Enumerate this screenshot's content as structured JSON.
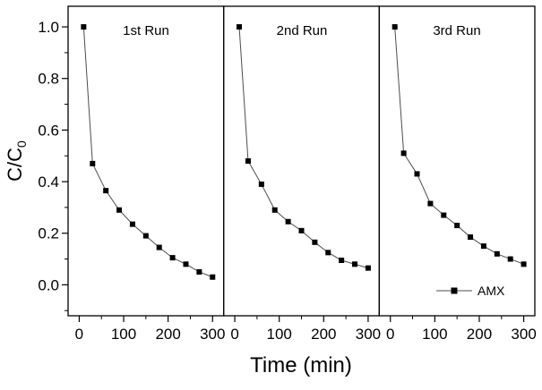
{
  "chart_data": {
    "type": "line",
    "title": "",
    "xlabel": "Time (min)",
    "ylabel": "C/C0",
    "ylabel_main": "C/C",
    "ylabel_sub": "0",
    "xlim": [
      -25,
      325
    ],
    "ylim": [
      -0.12,
      1.08
    ],
    "x_ticks": [
      0,
      100,
      200,
      300
    ],
    "x_tick_labels": [
      "0",
      "100",
      "200",
      "300"
    ],
    "x_minor_ticks": [
      50,
      150,
      250
    ],
    "y_ticks": [
      0.0,
      0.2,
      0.4,
      0.6,
      0.8,
      1.0
    ],
    "y_tick_labels": [
      "0.0",
      "0.2",
      "0.4",
      "0.6",
      "0.8",
      "1.0"
    ],
    "grid": false,
    "legend": {
      "label": "AMX",
      "position": "bottom-right of third panel"
    },
    "series_name": "AMX",
    "panels": [
      {
        "title": "1st Run",
        "x": [
          10,
          30,
          60,
          90,
          120,
          150,
          180,
          210,
          240,
          270,
          300
        ],
        "y": [
          1.0,
          0.47,
          0.365,
          0.29,
          0.235,
          0.19,
          0.145,
          0.105,
          0.08,
          0.05,
          0.03
        ]
      },
      {
        "title": "2nd Run",
        "x": [
          10,
          30,
          60,
          90,
          120,
          150,
          180,
          210,
          240,
          270,
          300
        ],
        "y": [
          1.0,
          0.48,
          0.39,
          0.29,
          0.245,
          0.21,
          0.165,
          0.125,
          0.095,
          0.08,
          0.065
        ]
      },
      {
        "title": "3rd Run",
        "x": [
          10,
          30,
          60,
          90,
          120,
          150,
          180,
          210,
          240,
          270,
          300
        ],
        "y": [
          1.0,
          0.51,
          0.43,
          0.315,
          0.27,
          0.23,
          0.185,
          0.15,
          0.12,
          0.1,
          0.08
        ]
      }
    ],
    "colors": {
      "line": "#4d4d4d",
      "marker": "#000000",
      "axis": "#000000",
      "background": "#ffffff"
    }
  }
}
